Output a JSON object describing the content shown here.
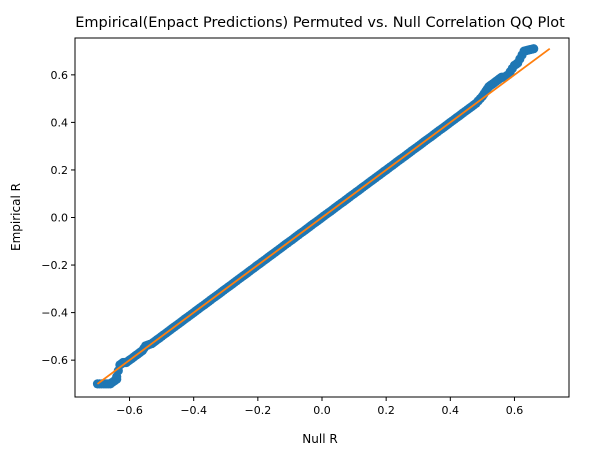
{
  "chart_data": {
    "type": "scatter",
    "title": "Empirical(Enpact Predictions) Permuted vs. Null Correlation QQ Plot",
    "xlabel": "Null R",
    "ylabel": "Empirical R",
    "xlim": [
      -0.77,
      0.77
    ],
    "ylim": [
      -0.755,
      0.755
    ],
    "xticks": [
      -0.6,
      -0.4,
      -0.2,
      0.0,
      0.2,
      0.4,
      0.6
    ],
    "yticks": [
      -0.6,
      -0.4,
      -0.2,
      0.0,
      0.2,
      0.4,
      0.6
    ],
    "xtick_labels": [
      "−0.6",
      "−0.4",
      "−0.2",
      "0.0",
      "0.2",
      "0.4",
      "0.6"
    ],
    "ytick_labels": [
      "−0.6",
      "−0.4",
      "−0.2",
      "0.0",
      "0.2",
      "0.4",
      "0.6"
    ],
    "grid": false,
    "colors": {
      "points": "#1f77b4",
      "line": "#ff7f0e"
    },
    "reference_line": {
      "x": [
        -0.7,
        0.71
      ],
      "y": [
        -0.7,
        0.71
      ]
    },
    "series": [
      {
        "type": "scatter",
        "points": [
          [
            -0.7,
            -0.7
          ],
          [
            -0.66,
            -0.7
          ],
          [
            -0.64,
            -0.68
          ],
          [
            -0.64,
            -0.67
          ],
          [
            -0.63,
            -0.62
          ],
          [
            -0.62,
            -0.61
          ],
          [
            -0.61,
            -0.61
          ],
          [
            -0.6,
            -0.6
          ],
          [
            -0.58,
            -0.58
          ],
          [
            -0.57,
            -0.57
          ],
          [
            -0.56,
            -0.56
          ],
          [
            -0.55,
            -0.54
          ],
          [
            -0.53,
            -0.53
          ],
          [
            -0.52,
            -0.52
          ],
          [
            -0.5,
            -0.5
          ],
          [
            -0.48,
            -0.48
          ],
          [
            -0.46,
            -0.46
          ],
          [
            -0.44,
            -0.44
          ],
          [
            -0.42,
            -0.42
          ],
          [
            -0.4,
            -0.4
          ],
          [
            -0.38,
            -0.38
          ],
          [
            -0.36,
            -0.36
          ],
          [
            -0.34,
            -0.34
          ],
          [
            -0.32,
            -0.32
          ],
          [
            -0.3,
            -0.3
          ],
          [
            -0.28,
            -0.28
          ],
          [
            -0.26,
            -0.26
          ],
          [
            -0.24,
            -0.24
          ],
          [
            -0.22,
            -0.22
          ],
          [
            -0.2,
            -0.2
          ],
          [
            -0.18,
            -0.18
          ],
          [
            -0.16,
            -0.16
          ],
          [
            -0.14,
            -0.14
          ],
          [
            -0.12,
            -0.12
          ],
          [
            -0.1,
            -0.1
          ],
          [
            -0.08,
            -0.08
          ],
          [
            -0.06,
            -0.06
          ],
          [
            -0.04,
            -0.04
          ],
          [
            -0.02,
            -0.02
          ],
          [
            0.0,
            0.0
          ],
          [
            0.02,
            0.02
          ],
          [
            0.04,
            0.04
          ],
          [
            0.06,
            0.06
          ],
          [
            0.08,
            0.08
          ],
          [
            0.1,
            0.1
          ],
          [
            0.12,
            0.12
          ],
          [
            0.14,
            0.14
          ],
          [
            0.16,
            0.16
          ],
          [
            0.18,
            0.18
          ],
          [
            0.2,
            0.2
          ],
          [
            0.22,
            0.22
          ],
          [
            0.24,
            0.24
          ],
          [
            0.26,
            0.26
          ],
          [
            0.28,
            0.28
          ],
          [
            0.3,
            0.3
          ],
          [
            0.32,
            0.32
          ],
          [
            0.34,
            0.34
          ],
          [
            0.36,
            0.36
          ],
          [
            0.38,
            0.38
          ],
          [
            0.4,
            0.4
          ],
          [
            0.42,
            0.42
          ],
          [
            0.44,
            0.44
          ],
          [
            0.46,
            0.46
          ],
          [
            0.48,
            0.48
          ],
          [
            0.5,
            0.51
          ],
          [
            0.51,
            0.53
          ],
          [
            0.52,
            0.55
          ],
          [
            0.53,
            0.56
          ],
          [
            0.54,
            0.57
          ],
          [
            0.55,
            0.58
          ],
          [
            0.56,
            0.59
          ],
          [
            0.57,
            0.59
          ],
          [
            0.58,
            0.6
          ],
          [
            0.6,
            0.64
          ],
          [
            0.61,
            0.65
          ],
          [
            0.63,
            0.7
          ],
          [
            0.66,
            0.71
          ]
        ]
      }
    ]
  }
}
